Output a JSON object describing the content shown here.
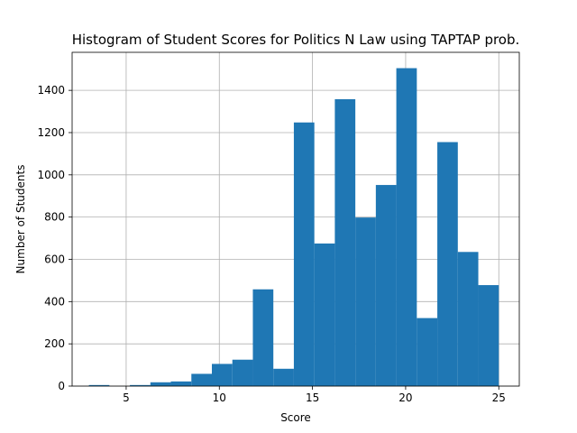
{
  "chart_data": {
    "type": "bar",
    "title": "Histogram of Student Scores for Politics N Law using TAPTAP prob.",
    "xlabel": "Score",
    "ylabel": "Number of Students",
    "xlim": [
      2.1,
      26.1
    ],
    "ylim": [
      0,
      1580
    ],
    "xticks": [
      5,
      10,
      15,
      20,
      25
    ],
    "yticks": [
      0,
      200,
      400,
      600,
      800,
      1000,
      1200,
      1400
    ],
    "grid": true,
    "bar_color": "#1f77b4",
    "bins": [
      {
        "x0": 3.0,
        "x1": 4.1,
        "count": 5
      },
      {
        "x0": 4.1,
        "x1": 5.2,
        "count": 0
      },
      {
        "x0": 5.2,
        "x1": 6.3,
        "count": 5
      },
      {
        "x0": 6.3,
        "x1": 7.4,
        "count": 18
      },
      {
        "x0": 7.4,
        "x1": 8.5,
        "count": 22
      },
      {
        "x0": 8.5,
        "x1": 9.6,
        "count": 58
      },
      {
        "x0": 9.6,
        "x1": 10.7,
        "count": 105
      },
      {
        "x0": 10.7,
        "x1": 11.8,
        "count": 125
      },
      {
        "x0": 11.8,
        "x1": 12.9,
        "count": 458
      },
      {
        "x0": 12.9,
        "x1": 14.0,
        "count": 82
      },
      {
        "x0": 14.0,
        "x1": 15.1,
        "count": 1248
      },
      {
        "x0": 15.1,
        "x1": 16.2,
        "count": 675
      },
      {
        "x0": 16.2,
        "x1": 17.3,
        "count": 1358
      },
      {
        "x0": 17.3,
        "x1": 18.4,
        "count": 798
      },
      {
        "x0": 18.4,
        "x1": 19.5,
        "count": 952
      },
      {
        "x0": 19.5,
        "x1": 20.6,
        "count": 1505
      },
      {
        "x0": 20.6,
        "x1": 21.7,
        "count": 322
      },
      {
        "x0": 21.7,
        "x1": 22.8,
        "count": 1155
      },
      {
        "x0": 22.8,
        "x1": 23.9,
        "count": 635
      },
      {
        "x0": 23.9,
        "x1": 25.0,
        "count": 478
      }
    ]
  }
}
